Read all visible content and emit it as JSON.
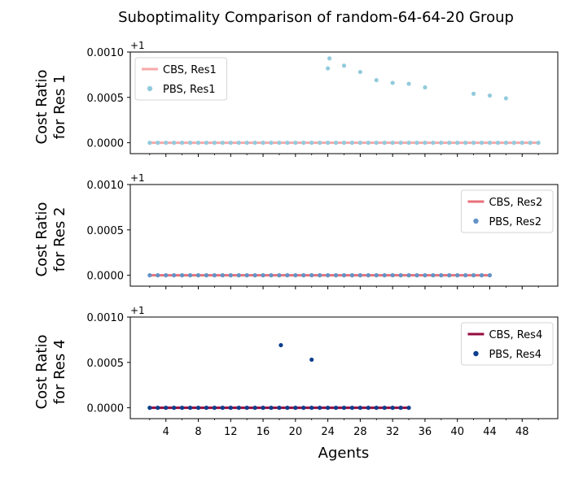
{
  "chart_data": {
    "type": "scatter",
    "title": "Suboptimality Comparison of random-64-64-20 Group",
    "xlabel": "Agents",
    "xlim": [
      -0.4,
      52.4
    ],
    "xticks": [
      4,
      8,
      12,
      16,
      20,
      24,
      28,
      32,
      36,
      40,
      44,
      48
    ],
    "xtick_labels": [
      "4",
      "8",
      "12",
      "16",
      "20",
      "24",
      "28",
      "32",
      "36",
      "40",
      "44",
      "48"
    ],
    "ylim": [
      -0.00012,
      0.001
    ],
    "yticks": [
      0.0,
      0.0005,
      0.001
    ],
    "ytick_labels": [
      "0.0000",
      "0.0005",
      "0.0010"
    ],
    "offset_text": "+1",
    "legend_font_size": 13,
    "panels": [
      {
        "ylabel_line1": "Cost Ratio",
        "ylabel_line2": "for Res 1",
        "legend_loc": "upper-left",
        "series": [
          {
            "name": "CBS, Res1",
            "kind": "line",
            "color": "#f7a8a8",
            "x": [
              2,
              50
            ],
            "y": [
              0.0,
              0.0
            ]
          },
          {
            "name": "PBS, Res1",
            "kind": "scatter",
            "color": "#92cbdc",
            "x": [
              2,
              3,
              4,
              5,
              6,
              7,
              8,
              9,
              10,
              11,
              12,
              13,
              14,
              15,
              16,
              17,
              18,
              19,
              20,
              21,
              22,
              23,
              24,
              25,
              26,
              27,
              28,
              29,
              30,
              31,
              32,
              33,
              34,
              35,
              36,
              37,
              38,
              39,
              40,
              41,
              42,
              43,
              44,
              45,
              46,
              47,
              48,
              49,
              50,
              24,
              24.2,
              26,
              28,
              30,
              32,
              34,
              36,
              42,
              44,
              46
            ],
            "y": [
              0,
              0,
              0,
              0,
              0,
              0,
              0,
              0,
              0,
              0,
              0,
              0,
              0,
              0,
              0,
              0,
              0,
              0,
              0,
              0,
              0,
              0,
              0,
              0,
              0,
              0,
              0,
              0,
              0,
              0,
              0,
              0,
              0,
              0,
              0,
              0,
              0,
              0,
              0,
              0,
              0,
              0,
              0,
              0,
              0,
              0,
              0,
              0,
              0,
              0.00082,
              0.00093,
              0.00085,
              0.00078,
              0.00069,
              0.00066,
              0.00065,
              0.00061,
              0.00054,
              0.00052,
              0.00049
            ]
          }
        ]
      },
      {
        "ylabel_line1": "Cost Ratio",
        "ylabel_line2": "for Res 2",
        "legend_loc": "upper-right",
        "series": [
          {
            "name": "CBS, Res2",
            "kind": "line",
            "color": "#e8707a",
            "x": [
              2,
              44
            ],
            "y": [
              0.0,
              0.0
            ]
          },
          {
            "name": "PBS, Res2",
            "kind": "scatter",
            "color": "#6393c6",
            "x": [
              2,
              3,
              4,
              5,
              6,
              7,
              8,
              9,
              10,
              11,
              12,
              13,
              14,
              15,
              16,
              17,
              18,
              19,
              20,
              21,
              22,
              23,
              24,
              25,
              26,
              27,
              28,
              29,
              30,
              31,
              32,
              33,
              34,
              35,
              36,
              37,
              38,
              39,
              40,
              41,
              42,
              43,
              44
            ],
            "y": [
              0,
              0,
              0,
              0,
              0,
              0,
              0,
              0,
              0,
              0,
              0,
              0,
              0,
              0,
              0,
              0,
              0,
              0,
              0,
              0,
              0,
              0,
              0,
              0,
              0,
              0,
              0,
              0,
              0,
              0,
              0,
              0,
              0,
              0,
              0,
              0,
              0,
              0,
              0,
              0,
              0,
              0,
              0
            ]
          }
        ]
      },
      {
        "ylabel_line1": "Cost Ratio",
        "ylabel_line2": "for Res 4",
        "legend_loc": "upper-right",
        "series": [
          {
            "name": "CBS, Res4",
            "kind": "line",
            "color": "#950a3e",
            "x": [
              2,
              34
            ],
            "y": [
              0.0,
              0.0
            ]
          },
          {
            "name": "PBS, Res4",
            "kind": "scatter",
            "color": "#0c3e8e",
            "x": [
              2,
              3,
              4,
              5,
              6,
              7,
              8,
              9,
              10,
              11,
              12,
              13,
              14,
              15,
              16,
              17,
              18,
              19,
              20,
              21,
              22,
              23,
              24,
              25,
              26,
              27,
              28,
              29,
              30,
              31,
              32,
              33,
              34,
              18.2,
              22
            ],
            "y": [
              0,
              0,
              0,
              0,
              0,
              0,
              0,
              0,
              0,
              0,
              0,
              0,
              0,
              0,
              0,
              0,
              0,
              0,
              0,
              0,
              0,
              0,
              0,
              0,
              0,
              0,
              0,
              0,
              0,
              0,
              0,
              0,
              0,
              0.00069,
              0.00053
            ]
          }
        ]
      }
    ]
  }
}
